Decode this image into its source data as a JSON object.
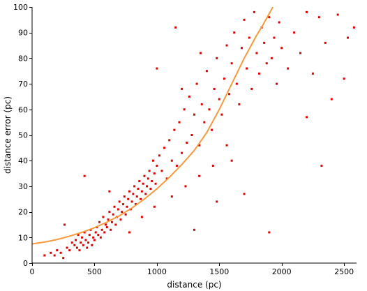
{
  "chart_data": {
    "type": "scatter",
    "title": "",
    "xlabel": "distance (pc)",
    "ylabel": "distance error (pc)",
    "xlim": [
      0,
      2600
    ],
    "ylim": [
      0,
      100
    ],
    "xticks": [
      0,
      500,
      1000,
      1500,
      2000,
      2500
    ],
    "yticks": [
      0,
      10,
      20,
      30,
      40,
      50,
      60,
      70,
      80,
      90,
      100
    ],
    "grid": false,
    "legend": "none",
    "colors": {
      "points": "#e00000",
      "trend": "#f79a3c",
      "axis": "#000000"
    },
    "series": [
      {
        "type": "scatter",
        "points": [
          [
            100,
            3
          ],
          [
            150,
            4
          ],
          [
            180,
            3
          ],
          [
            200,
            5
          ],
          [
            230,
            4
          ],
          [
            250,
            2
          ],
          [
            260,
            15
          ],
          [
            280,
            6
          ],
          [
            300,
            5
          ],
          [
            320,
            8
          ],
          [
            340,
            7
          ],
          [
            350,
            9
          ],
          [
            360,
            6
          ],
          [
            370,
            11
          ],
          [
            380,
            5
          ],
          [
            390,
            8
          ],
          [
            400,
            10
          ],
          [
            410,
            7
          ],
          [
            420,
            12
          ],
          [
            430,
            9
          ],
          [
            440,
            6
          ],
          [
            450,
            8
          ],
          [
            460,
            11
          ],
          [
            470,
            13
          ],
          [
            480,
            7
          ],
          [
            490,
            10
          ],
          [
            500,
            9
          ],
          [
            510,
            12
          ],
          [
            520,
            14
          ],
          [
            530,
            11
          ],
          [
            540,
            16
          ],
          [
            550,
            10
          ],
          [
            560,
            13
          ],
          [
            570,
            18
          ],
          [
            580,
            12
          ],
          [
            590,
            15
          ],
          [
            600,
            14
          ],
          [
            610,
            17
          ],
          [
            620,
            20
          ],
          [
            630,
            13
          ],
          [
            640,
            16
          ],
          [
            650,
            19
          ],
          [
            660,
            22
          ],
          [
            670,
            15
          ],
          [
            680,
            18
          ],
          [
            690,
            21
          ],
          [
            700,
            24
          ],
          [
            710,
            17
          ],
          [
            720,
            20
          ],
          [
            730,
            23
          ],
          [
            740,
            26
          ],
          [
            750,
            19
          ],
          [
            760,
            22
          ],
          [
            770,
            25
          ],
          [
            780,
            28
          ],
          [
            790,
            21
          ],
          [
            800,
            24
          ],
          [
            810,
            27
          ],
          [
            820,
            30
          ],
          [
            830,
            23
          ],
          [
            840,
            26
          ],
          [
            850,
            29
          ],
          [
            860,
            32
          ],
          [
            870,
            25
          ],
          [
            880,
            28
          ],
          [
            890,
            31
          ],
          [
            900,
            34
          ],
          [
            910,
            27
          ],
          [
            920,
            30
          ],
          [
            930,
            33
          ],
          [
            940,
            36
          ],
          [
            950,
            29
          ],
          [
            960,
            32
          ],
          [
            970,
            40
          ],
          [
            980,
            35
          ],
          [
            990,
            31
          ],
          [
            1000,
            38
          ],
          [
            1020,
            42
          ],
          [
            1040,
            36
          ],
          [
            1060,
            45
          ],
          [
            1080,
            33
          ],
          [
            1100,
            48
          ],
          [
            1120,
            40
          ],
          [
            1140,
            52
          ],
          [
            1160,
            38
          ],
          [
            1180,
            55
          ],
          [
            1200,
            43
          ],
          [
            1220,
            60
          ],
          [
            1240,
            47
          ],
          [
            1260,
            65
          ],
          [
            1280,
            50
          ],
          [
            1300,
            58
          ],
          [
            1320,
            70
          ],
          [
            1340,
            46
          ],
          [
            1360,
            62
          ],
          [
            1380,
            55
          ],
          [
            1400,
            75
          ],
          [
            1420,
            60
          ],
          [
            1440,
            52
          ],
          [
            1460,
            68
          ],
          [
            1480,
            80
          ],
          [
            1500,
            64
          ],
          [
            1520,
            58
          ],
          [
            1540,
            72
          ],
          [
            1560,
            85
          ],
          [
            1580,
            66
          ],
          [
            1600,
            78
          ],
          [
            1620,
            90
          ],
          [
            1640,
            70
          ],
          [
            1660,
            62
          ],
          [
            1680,
            84
          ],
          [
            1700,
            95
          ],
          [
            1720,
            76
          ],
          [
            1740,
            88
          ],
          [
            1760,
            68
          ],
          [
            1780,
            98
          ],
          [
            1800,
            82
          ],
          [
            1820,
            74
          ],
          [
            1840,
            92
          ],
          [
            1860,
            86
          ],
          [
            1880,
            78
          ],
          [
            1900,
            96
          ],
          [
            1920,
            80
          ],
          [
            1940,
            88
          ],
          [
            1960,
            70
          ],
          [
            1980,
            94
          ],
          [
            2000,
            84
          ],
          [
            2050,
            76
          ],
          [
            2100,
            90
          ],
          [
            2150,
            82
          ],
          [
            2200,
            98
          ],
          [
            2250,
            74
          ],
          [
            2300,
            96
          ],
          [
            2320,
            38
          ],
          [
            2350,
            86
          ],
          [
            2400,
            64
          ],
          [
            2450,
            97
          ],
          [
            2500,
            72
          ],
          [
            2530,
            88
          ],
          [
            2580,
            92
          ],
          [
            1000,
            76
          ],
          [
            1150,
            92
          ],
          [
            1200,
            68
          ],
          [
            1300,
            13
          ],
          [
            1350,
            82
          ],
          [
            1480,
            24
          ],
          [
            1600,
            40
          ],
          [
            1700,
            27
          ],
          [
            2200,
            57
          ],
          [
            1900,
            12
          ],
          [
            420,
            34
          ],
          [
            620,
            28
          ],
          [
            780,
            12
          ],
          [
            880,
            18
          ],
          [
            980,
            22
          ],
          [
            1120,
            26
          ],
          [
            1230,
            30
          ],
          [
            1340,
            34
          ],
          [
            1450,
            38
          ],
          [
            1560,
            46
          ]
        ]
      },
      {
        "type": "line",
        "points": [
          [
            0,
            7.5
          ],
          [
            100,
            8.2
          ],
          [
            200,
            9.2
          ],
          [
            300,
            10.5
          ],
          [
            400,
            12
          ],
          [
            500,
            13.8
          ],
          [
            600,
            16
          ],
          [
            700,
            18.5
          ],
          [
            800,
            21.5
          ],
          [
            900,
            25
          ],
          [
            1000,
            29
          ],
          [
            1100,
            33.5
          ],
          [
            1200,
            38.5
          ],
          [
            1300,
            44
          ],
          [
            1400,
            51
          ],
          [
            1500,
            60
          ],
          [
            1600,
            70
          ],
          [
            1700,
            80
          ],
          [
            1800,
            89
          ],
          [
            1850,
            93
          ],
          [
            1930,
            100
          ]
        ]
      }
    ]
  }
}
